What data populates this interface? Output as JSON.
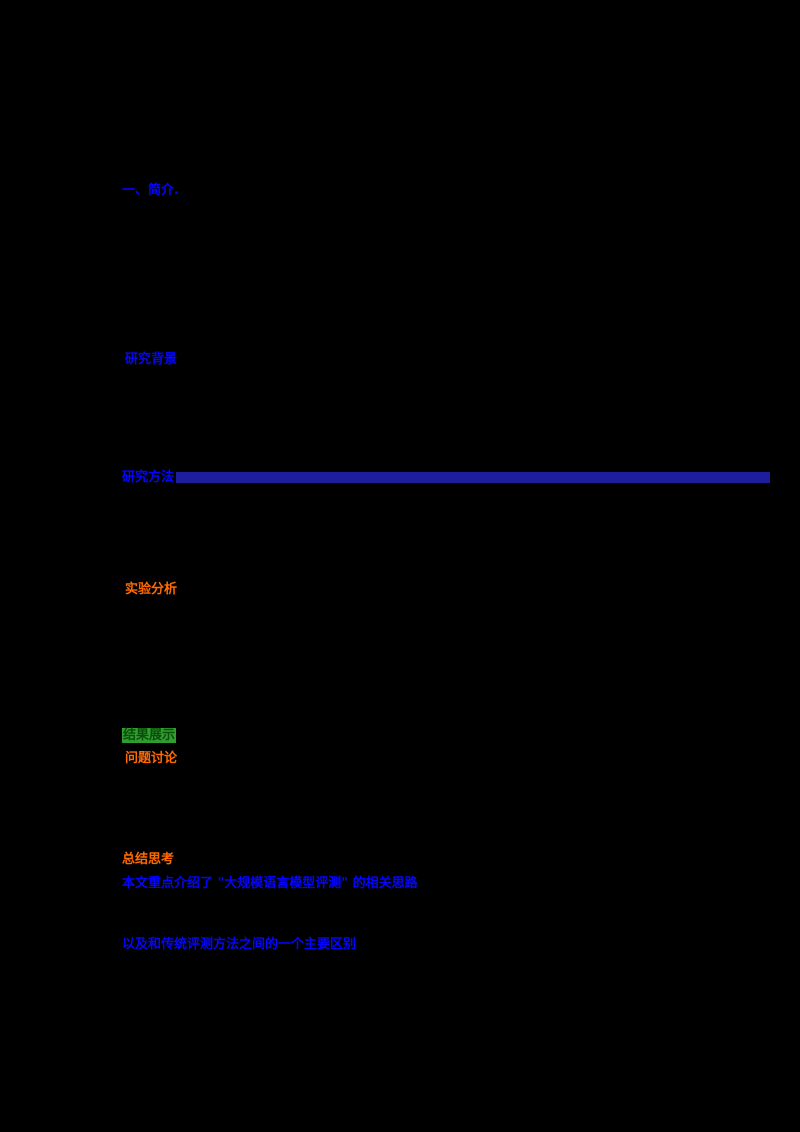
{
  "page": {
    "background_color": "#000000",
    "colors": {
      "link_blue": "#0505ff",
      "bar_navy": "#1d1d9e",
      "accent_orange": "#ff6a00",
      "highlight_green_bg": "#2e9e2e",
      "highlight_green_text": "#0d4d0d"
    }
  },
  "lines": {
    "l1": {
      "text": "一、简介."
    },
    "l2": {
      "text": "研究背景"
    },
    "l3": {
      "text": "研究方法"
    },
    "l4": {
      "text": "实验分析"
    },
    "l5": {
      "text": "结果展示"
    },
    "l6": {
      "text": "问题讨论"
    },
    "l7": {
      "text": "总结思考"
    },
    "l8": {
      "text": "本文重点介绍了 \"大规模语言模型评测\" 的相关思路"
    },
    "l9": {
      "text": "以及和传统评测方法之间的一个主要区别"
    }
  }
}
